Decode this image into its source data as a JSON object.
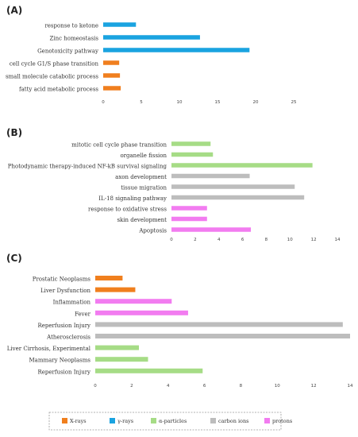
{
  "colors": {
    "x_rays": "#f07f1e",
    "gamma_rays": "#1aa3e0",
    "alpha_particles": "#a6dc86",
    "carbon_ions": "#bdbdbd",
    "protons": "#f27cf0"
  },
  "legend": {
    "items": [
      {
        "label": "X-rays",
        "color_key": "x_rays"
      },
      {
        "label": "γ-rays",
        "color_key": "gamma_rays"
      },
      {
        "label": "α-particles",
        "color_key": "alpha_particles"
      },
      {
        "label": "carbon ions",
        "color_key": "carbon_ions"
      },
      {
        "label": "protons",
        "color_key": "protons"
      }
    ]
  },
  "chart_data": [
    {
      "type": "bar",
      "orientation": "horizontal",
      "panel_label": "(A)",
      "xlim": [
        0,
        25
      ],
      "xticks": [
        0,
        5,
        10,
        15,
        20,
        25
      ],
      "grid": false,
      "categories": [
        "response to ketone",
        "Zinc homeostasis",
        "Genotoxicity pathway",
        "cell cycle G1/S phase transition",
        "small molecule catabolic process",
        "fatty acid metabolic process"
      ],
      "values": [
        4.3,
        12.7,
        19.2,
        2.1,
        2.2,
        2.3
      ],
      "color_keys": [
        "gamma_rays",
        "gamma_rays",
        "gamma_rays",
        "x_rays",
        "x_rays",
        "x_rays"
      ]
    },
    {
      "type": "bar",
      "orientation": "horizontal",
      "panel_label": "(B)",
      "xlim": [
        0,
        14
      ],
      "xticks": [
        0,
        2,
        4,
        6,
        8,
        10,
        12,
        14
      ],
      "grid": false,
      "categories": [
        "mitotic cell cycle phase transition",
        "organelle fission",
        "Photodynamic therapy-induced NF-kB survival signaling",
        "axon development",
        "tissue migration",
        "IL-18 signaling pathway",
        "response to oxidative stress",
        "skin development",
        "Apoptosis"
      ],
      "values": [
        3.3,
        3.5,
        11.9,
        6.6,
        10.4,
        11.2,
        3.0,
        3.0,
        6.7
      ],
      "color_keys": [
        "alpha_particles",
        "alpha_particles",
        "alpha_particles",
        "carbon_ions",
        "carbon_ions",
        "carbon_ions",
        "protons",
        "protons",
        "protons"
      ]
    },
    {
      "type": "bar",
      "orientation": "horizontal",
      "panel_label": "(C)",
      "xlim": [
        0,
        14
      ],
      "xticks": [
        0,
        2,
        4,
        6,
        8,
        10,
        12,
        14
      ],
      "grid": false,
      "categories": [
        "Prostatic Neoplasms",
        "Liver Dysfunction",
        "Inflammation",
        "Fever",
        "Reperfusion Injury",
        "Atherosclerosis",
        "Liver Cirrhosis, Experimental",
        "Mammary Neoplasms",
        "Reperfusion Injury"
      ],
      "values": [
        1.5,
        2.2,
        4.2,
        5.1,
        13.6,
        14.0,
        2.4,
        2.9,
        5.9
      ],
      "color_keys": [
        "x_rays",
        "x_rays",
        "protons",
        "protons",
        "carbon_ions",
        "carbon_ions",
        "alpha_particles",
        "alpha_particles",
        "alpha_particles"
      ]
    }
  ]
}
